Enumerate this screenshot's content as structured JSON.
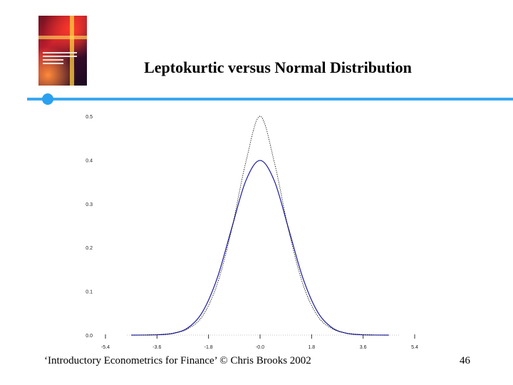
{
  "slide": {
    "title": "Leptokurtic versus Normal Distribution",
    "footer": "‘Introductory Econometrics for Finance’ © Chris Brooks 2002",
    "page_number": "46"
  },
  "colors": {
    "accent_rule": "#3aa8f0",
    "normal_series": "#1a1aa0",
    "lepto_series": "#000000",
    "tick_text": "#222222"
  },
  "chart_data": {
    "type": "line",
    "title": "",
    "xlabel": "",
    "ylabel": "",
    "xlim": [
      -5.4,
      5.4
    ],
    "ylim": [
      0,
      0.5
    ],
    "x_ticks": [
      -5.4,
      -3.6,
      -1.8,
      0.0,
      1.8,
      3.6,
      5.4
    ],
    "x_tick_labels": [
      "-5.4",
      "-3.6",
      "-1.8",
      "-0.0",
      "1.8",
      "3.6",
      "5.4"
    ],
    "y_ticks": [
      0.0,
      0.1,
      0.2,
      0.3,
      0.4,
      0.5
    ],
    "y_tick_labels": [
      "0.0",
      "0.1",
      "0.2",
      "0.3",
      "0.4",
      "0.5"
    ],
    "grid": false,
    "legend": "none",
    "x": [
      -4.5,
      -4.0,
      -3.5,
      -3.0,
      -2.5,
      -2.0,
      -1.5,
      -1.0,
      -0.5,
      0.0,
      0.5,
      1.0,
      1.5,
      2.0,
      2.5,
      3.0,
      3.5,
      4.0,
      4.5
    ],
    "series": [
      {
        "style": "solid",
        "values": [
          0.0,
          0.0001,
          0.0009,
          0.0044,
          0.0175,
          0.054,
          0.1295,
          0.242,
          0.3521,
          0.3989,
          0.3521,
          0.242,
          0.1295,
          0.054,
          0.0175,
          0.0044,
          0.0009,
          0.0001,
          0.0
        ]
      },
      {
        "style": "dotted",
        "values": [
          0.0,
          0.0003,
          0.0015,
          0.0049,
          0.0152,
          0.0446,
          0.1158,
          0.2387,
          0.3944,
          0.5,
          0.3944,
          0.2387,
          0.1158,
          0.0446,
          0.0152,
          0.0049,
          0.0015,
          0.0003,
          0.0
        ]
      }
    ]
  }
}
